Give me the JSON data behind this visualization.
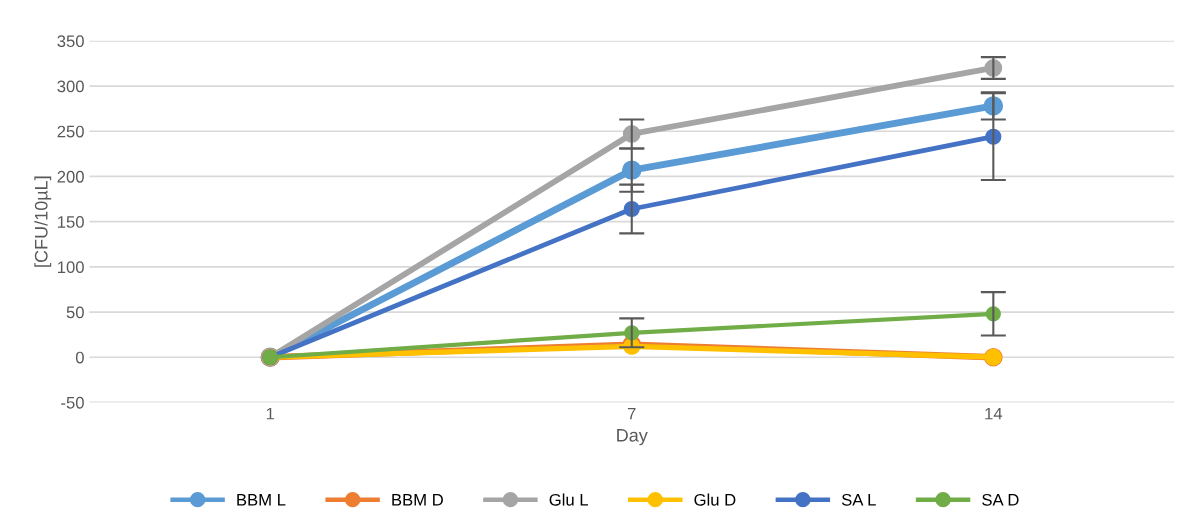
{
  "chart_data": {
    "type": "line",
    "xlabel": "Day",
    "ylabel": "[CFU/10µL]",
    "categories": [
      "1",
      "7",
      "14"
    ],
    "ylim": [
      -50,
      350
    ],
    "yticks": [
      -50,
      0,
      50,
      100,
      150,
      200,
      250,
      300,
      350
    ],
    "grid": "y",
    "legend": "bottom",
    "marker": "circle",
    "line_style": "solid",
    "series": [
      {
        "name": "BBM L",
        "color": "#5b9bd5",
        "values": [
          0,
          207,
          278
        ],
        "errors": [
          null,
          24,
          15
        ]
      },
      {
        "name": "BBM D",
        "color": "#ed7d31",
        "values": [
          0,
          14,
          0
        ]
      },
      {
        "name": "Glu L",
        "color": "#a5a5a5",
        "values": [
          0,
          247,
          320
        ],
        "errors": [
          null,
          16,
          12
        ]
      },
      {
        "name": "Glu D",
        "color": "#ffc000",
        "values": [
          0,
          12,
          0
        ]
      },
      {
        "name": "SA L",
        "color": "#4472c4",
        "values": [
          0,
          164,
          244
        ],
        "errors": [
          null,
          27,
          48
        ]
      },
      {
        "name": "SA D",
        "color": "#70ad47",
        "values": [
          0,
          27,
          48
        ],
        "errors": [
          null,
          16,
          24
        ]
      }
    ]
  }
}
